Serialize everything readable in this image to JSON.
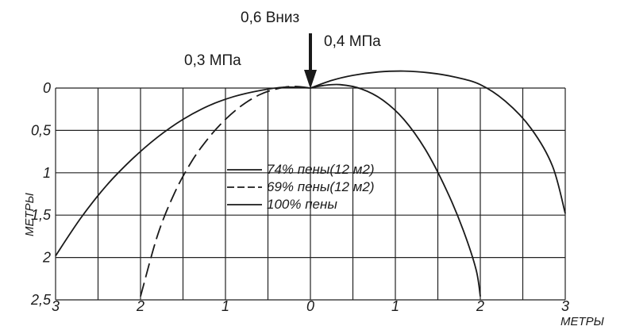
{
  "chart_data": {
    "type": "line",
    "xlabel": "МЕТРЫ",
    "ylabel": "МЕТРЫ",
    "x_tick_labels": [
      "3",
      "2",
      "1",
      "0",
      "1",
      "2",
      "3"
    ],
    "x_tick_values": [
      -3,
      -2,
      -1,
      0,
      1,
      2,
      3
    ],
    "y_tick_labels": [
      "0",
      "0,5",
      "1",
      "1,5",
      "2",
      "2,5"
    ],
    "y_tick_values": [
      0,
      0.5,
      1,
      1.5,
      2,
      2.5
    ],
    "xlim": [
      -3,
      3
    ],
    "ylim": [
      0,
      2.5
    ],
    "grid": true,
    "annotations": {
      "top_load": "0,6 Вниз",
      "left_pressure": "0,3 МПа",
      "right_pressure": "0,4 МПа"
    },
    "series": [
      {
        "name": "74% пены(12 м2)",
        "style": "solid",
        "x": [
          -3.0,
          -2.7,
          -2.4,
          -2.1,
          -1.8,
          -1.5,
          -1.2,
          -0.9,
          -0.6,
          -0.3,
          0.0
        ],
        "y": [
          1.98,
          1.53,
          1.15,
          0.84,
          0.58,
          0.37,
          0.21,
          0.1,
          0.03,
          -0.01,
          0.0
        ]
      },
      {
        "name": "69% пены(12 м2)",
        "style": "dashed",
        "x": [
          -2.0,
          -1.8,
          -1.6,
          -1.4,
          -1.2,
          -1.0,
          -0.8,
          -0.6,
          -0.4,
          -0.2,
          0.0
        ],
        "y": [
          2.46,
          1.74,
          1.24,
          0.87,
          0.59,
          0.37,
          0.2,
          0.08,
          0.01,
          -0.02,
          0.0
        ]
      },
      {
        "name": "100% пены",
        "style": "solid",
        "x": [
          0.0,
          0.15,
          0.35,
          0.6,
          0.85,
          1.1,
          1.35,
          1.6,
          1.8,
          1.95,
          2.0
        ],
        "y": [
          0.0,
          -0.03,
          -0.04,
          0.01,
          0.14,
          0.37,
          0.72,
          1.2,
          1.68,
          2.14,
          2.46
        ]
      },
      {
        "name": "",
        "style": "solid",
        "x": [
          0.0,
          0.25,
          0.5,
          0.8,
          1.1,
          1.4,
          1.7,
          2.0,
          2.3,
          2.6,
          2.85,
          3.0
        ],
        "y": [
          0.0,
          -0.09,
          -0.15,
          -0.19,
          -0.2,
          -0.18,
          -0.13,
          -0.04,
          0.16,
          0.48,
          0.92,
          1.48
        ]
      }
    ]
  },
  "colors": {
    "ink": "#1a1a1a",
    "grid": "#222222",
    "background": "#ffffff"
  }
}
